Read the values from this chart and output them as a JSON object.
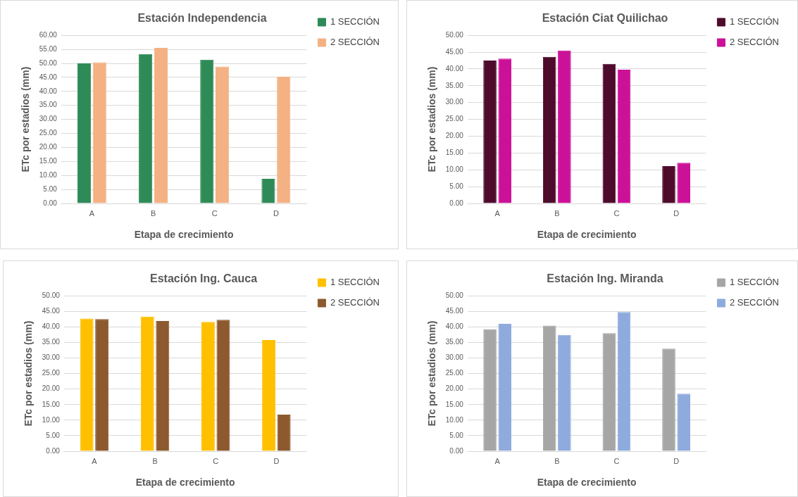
{
  "chart_data": [
    {
      "type": "bar",
      "title": "Estación Independencia",
      "xlabel": "Etapa de crecimiento",
      "ylabel": "ETc por estadios (mm)",
      "categories": [
        "A",
        "B",
        "C",
        "D"
      ],
      "series": [
        {
          "name": "1 SECCIÓN",
          "color": "#2e8b57",
          "values": [
            50.0,
            53.3,
            51.3,
            8.8
          ]
        },
        {
          "name": "2 SECCIÓN",
          "color": "#f4b183",
          "values": [
            50.4,
            55.5,
            48.9,
            45.2
          ]
        }
      ],
      "ylim": [
        0,
        60
      ],
      "yticks": [
        {
          "value": 0,
          "label": "0.00"
        },
        {
          "value": 5,
          "label": "5.00"
        },
        {
          "value": 10,
          "label": "10.00"
        },
        {
          "value": 15,
          "label": "15.00"
        },
        {
          "value": 20,
          "label": "20.00"
        },
        {
          "value": 25,
          "label": "25.00"
        },
        {
          "value": 30,
          "label": "30.00"
        },
        {
          "value": 35,
          "label": "35.00"
        },
        {
          "value": 40,
          "label": "40.00"
        },
        {
          "value": 45,
          "label": "45.00"
        },
        {
          "value": 50,
          "label": "50.00"
        },
        {
          "value": 55,
          "label": "55.00"
        },
        {
          "value": 60,
          "label": "60.00"
        }
      ],
      "grid": "y",
      "legend": "top right"
    },
    {
      "type": "bar",
      "title": "Estación Ciat Quilichao",
      "xlabel": "Etapa de crecimiento",
      "ylabel": "ETc por estadios (mm)",
      "categories": [
        "A",
        "B",
        "C",
        "D"
      ],
      "series": [
        {
          "name": "1 SECCIÓN",
          "color": "#4e0b2c",
          "values": [
            42.5,
            43.6,
            41.5,
            11.1
          ]
        },
        {
          "name": "2 SECCIÓN",
          "color": "#cc1199",
          "values": [
            43.1,
            45.5,
            39.8,
            12.1
          ]
        }
      ],
      "ylim": [
        0,
        50
      ],
      "yticks": [
        {
          "value": 0,
          "label": "0.00"
        },
        {
          "value": 5,
          "label": "5.00"
        },
        {
          "value": 10,
          "label": "10.00"
        },
        {
          "value": 15,
          "label": "15.00"
        },
        {
          "value": 20,
          "label": "20.00"
        },
        {
          "value": 25,
          "label": "25.00"
        },
        {
          "value": 30,
          "label": "30.00"
        },
        {
          "value": 35,
          "label": "35.00"
        },
        {
          "value": 40,
          "label": "40.00"
        },
        {
          "value": 45,
          "label": "45.00"
        },
        {
          "value": 50,
          "label": "50.00"
        }
      ],
      "grid": "y",
      "legend": "top right"
    },
    {
      "type": "bar",
      "title": "Estación Ing. Cauca",
      "xlabel": "Etapa de crecimiento",
      "ylabel": "ETc por estadios (mm)",
      "categories": [
        "A",
        "B",
        "C",
        "D"
      ],
      "series": [
        {
          "name": "1 SECCIÓN",
          "color": "#ffc000",
          "values": [
            42.7,
            43.3,
            41.6,
            35.8
          ]
        },
        {
          "name": "2 SECCIÓN",
          "color": "#8c5a2e",
          "values": [
            42.5,
            41.9,
            42.3,
            11.8
          ]
        }
      ],
      "ylim": [
        0,
        50
      ],
      "yticks": [
        {
          "value": 0,
          "label": "0.00"
        },
        {
          "value": 5,
          "label": "5.00"
        },
        {
          "value": 10,
          "label": "10.00"
        },
        {
          "value": 15,
          "label": "15.00"
        },
        {
          "value": 20,
          "label": "20.00"
        },
        {
          "value": 25,
          "label": "25.00"
        },
        {
          "value": 30,
          "label": "30.00"
        },
        {
          "value": 35,
          "label": "35.00"
        },
        {
          "value": 40,
          "label": "40.00"
        },
        {
          "value": 45,
          "label": "45.00"
        },
        {
          "value": 50,
          "label": "50.00"
        }
      ],
      "grid": "y",
      "legend": "top right"
    },
    {
      "type": "bar",
      "title": "Estación Ing. Miranda",
      "xlabel": "Etapa de crecimiento",
      "ylabel": "ETc por estadios (mm)",
      "categories": [
        "A",
        "B",
        "C",
        "D"
      ],
      "series": [
        {
          "name": "1 SECCIÓN",
          "color": "#a6a6a6",
          "values": [
            39.3,
            40.4,
            38.0,
            33.0
          ]
        },
        {
          "name": "2 SECCIÓN",
          "color": "#8faadc",
          "values": [
            41.0,
            37.4,
            44.8,
            18.5
          ]
        }
      ],
      "ylim": [
        0,
        50
      ],
      "yticks": [
        {
          "value": 0,
          "label": "0.00"
        },
        {
          "value": 5,
          "label": "5.00"
        },
        {
          "value": 10,
          "label": "10.00"
        },
        {
          "value": 15,
          "label": "15.00"
        },
        {
          "value": 20,
          "label": "20.00"
        },
        {
          "value": 25,
          "label": "25.00"
        },
        {
          "value": 30,
          "label": "30.00"
        },
        {
          "value": 35,
          "label": "35.00"
        },
        {
          "value": 40,
          "label": "40.00"
        },
        {
          "value": 45,
          "label": "45.00"
        },
        {
          "value": 50,
          "label": "50.00"
        }
      ],
      "grid": "y",
      "legend": "top right"
    }
  ]
}
